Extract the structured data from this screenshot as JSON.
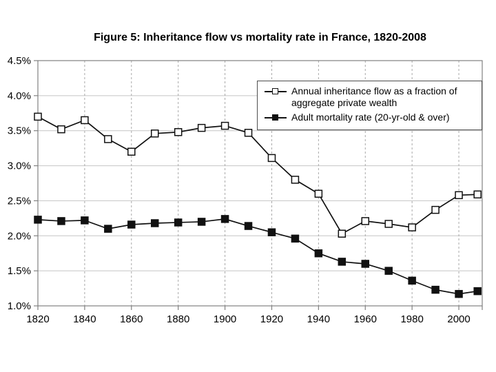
{
  "colors": {
    "background": "#ffffff",
    "line": "#111111",
    "text": "#000000",
    "plot_border": "#808080",
    "gridline_horizontal": "#c4c4c4",
    "gridline_vertical": "#a8a8a8"
  },
  "chart_data": {
    "type": "line",
    "title": "Figure 5: Inheritance flow vs mortality rate in France, 1820-2008",
    "xlabel": "",
    "ylabel": "",
    "xlim": [
      1820,
      2010
    ],
    "ylim": [
      1.0,
      4.5
    ],
    "grid": {
      "horizontal": "solid",
      "vertical": "dashed"
    },
    "legend_position": "top-right",
    "x": [
      1820,
      1830,
      1840,
      1850,
      1860,
      1870,
      1880,
      1890,
      1900,
      1910,
      1920,
      1930,
      1940,
      1950,
      1960,
      1970,
      1980,
      1990,
      2000,
      2008
    ],
    "series": [
      {
        "id": "inheritance-flow",
        "name": "Annual inheritance flow as a fraction of aggregate private wealth",
        "marker": "open-square",
        "values": [
          3.7,
          3.52,
          3.65,
          3.38,
          3.2,
          3.46,
          3.48,
          3.54,
          3.57,
          3.47,
          3.11,
          2.8,
          2.6,
          2.03,
          2.21,
          2.17,
          2.12,
          2.37,
          2.58,
          2.59
        ]
      },
      {
        "id": "mortality-rate",
        "name": "Adult mortality rate (20-yr-old & over)",
        "marker": "filled-square",
        "values": [
          2.23,
          2.21,
          2.22,
          2.1,
          2.16,
          2.18,
          2.19,
          2.2,
          2.24,
          2.14,
          2.05,
          1.96,
          1.75,
          1.63,
          1.6,
          1.5,
          1.36,
          1.23,
          1.17,
          1.21
        ]
      }
    ],
    "y_ticks": [
      {
        "value": 4.5,
        "label": "4.5%"
      },
      {
        "value": 4.0,
        "label": "4.0%"
      },
      {
        "value": 3.5,
        "label": "3.5%"
      },
      {
        "value": 3.0,
        "label": "3.0%"
      },
      {
        "value": 2.5,
        "label": "2.5%"
      },
      {
        "value": 2.0,
        "label": "2.0%"
      },
      {
        "value": 1.5,
        "label": "1.5%"
      },
      {
        "value": 1.0,
        "label": "1.0%"
      }
    ],
    "x_ticks": [
      {
        "value": 1820,
        "label": "1820"
      },
      {
        "value": 1840,
        "label": "1840"
      },
      {
        "value": 1860,
        "label": "1860"
      },
      {
        "value": 1880,
        "label": "1880"
      },
      {
        "value": 1900,
        "label": "1900"
      },
      {
        "value": 1920,
        "label": "1920"
      },
      {
        "value": 1940,
        "label": "1940"
      },
      {
        "value": 1960,
        "label": "1960"
      },
      {
        "value": 1980,
        "label": "1980"
      },
      {
        "value": 2000,
        "label": "2000"
      },
      {
        "value": 2010,
        "label": ""
      }
    ]
  }
}
